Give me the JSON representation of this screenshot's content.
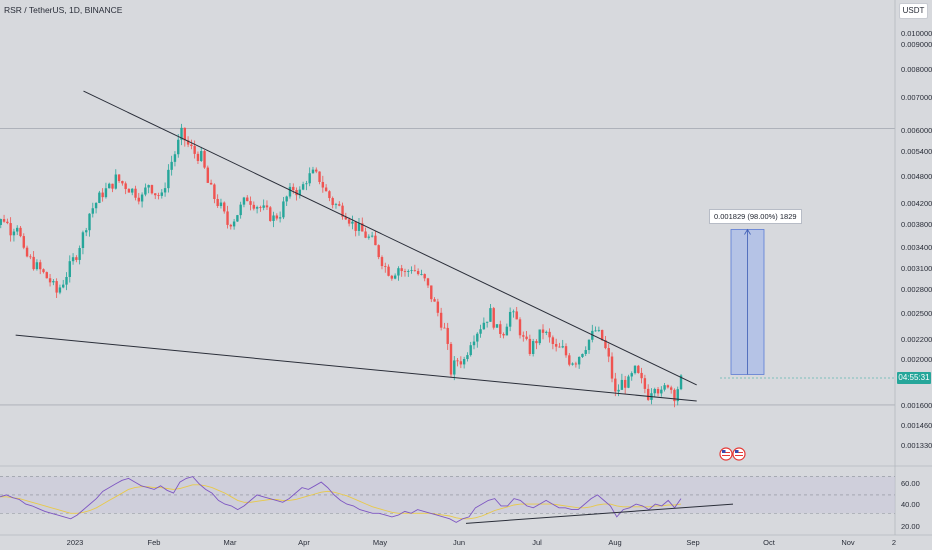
{
  "header": {
    "symbol_title": "RSR / TetherUS, 1D, BINANCE",
    "currency": "USDT"
  },
  "price_axis": {
    "ticks": [
      "0.010000",
      "0.009000",
      "0.008000",
      "0.007000",
      "0.006000",
      "0.005400",
      "0.004800",
      "0.004200",
      "0.003800",
      "0.003400",
      "0.003100",
      "0.002800",
      "0.002500",
      "0.002200",
      "0.002000",
      "0.001600",
      "0.001460",
      "0.001330"
    ],
    "current_countdown": "04:55:31"
  },
  "time_axis": {
    "labels": [
      "2023",
      "Feb",
      "Mar",
      "Apr",
      "May",
      "Jun",
      "Jul",
      "Aug",
      "Sep",
      "Oct",
      "Nov",
      "2"
    ]
  },
  "measure_tool": {
    "label": "0.001829 (98.00%) 1829"
  },
  "rsi_axis": {
    "ticks": [
      "60.00",
      "40.00",
      "20.00"
    ]
  },
  "colors": {
    "background": "#d7d9dd",
    "up": "#26a69a",
    "down": "#ef5350",
    "trendline": "#2a2e39",
    "measure_fill": "#aabbe8",
    "rsi_line": "#7e57c2",
    "rsi_ma": "#e8c94a",
    "rsi_band": "#c9c6d8"
  },
  "chart_data": {
    "type": "candlestick",
    "symbol": "RSR / TetherUS",
    "interval": "1D",
    "exchange": "BINANCE",
    "scale": "log",
    "price_range": [
      0.00125,
      0.0109
    ],
    "dates": [
      "2022-12-20",
      "2023-09-13"
    ],
    "close_path": [
      0.0039,
      0.0039,
      0.0038,
      0.0039,
      0.0037,
      0.0038,
      0.0033,
      0.0032,
      0.0031,
      0.003,
      0.0029,
      0.00275,
      0.0029,
      0.0031,
      0.0033,
      0.0036,
      0.004,
      0.0042,
      0.0044,
      0.0045,
      0.0047,
      0.0046,
      0.0045,
      0.0044,
      0.0043,
      0.0046,
      0.0044,
      0.0043,
      0.0049,
      0.0053,
      0.0058,
      0.0055,
      0.0053,
      0.0052,
      0.0046,
      0.0043,
      0.0041,
      0.0038,
      0.0039,
      0.0041,
      0.0043,
      0.0042,
      0.0041,
      0.004,
      0.0039,
      0.004,
      0.0043,
      0.0045,
      0.0044,
      0.0047,
      0.0048,
      0.0047,
      0.0044,
      0.0042,
      0.0041,
      0.004,
      0.0038,
      0.0037,
      0.0036,
      0.0035,
      0.0033,
      0.0031,
      0.003,
      0.0031,
      0.003,
      0.0031,
      0.003,
      0.0029,
      0.0027,
      0.0025,
      0.0023,
      0.0019,
      0.002,
      0.002,
      0.0022,
      0.0023,
      0.0024,
      0.0025,
      0.0023,
      0.0023,
      0.0025,
      0.0024,
      0.0022,
      0.0021,
      0.0022,
      0.0023,
      0.0022,
      0.0021,
      0.0021,
      0.002,
      0.002,
      0.0021,
      0.0022,
      0.0023,
      0.0022,
      0.002,
      0.0017,
      0.0018,
      0.0018,
      0.0019,
      0.0018,
      0.0017,
      0.0018,
      0.0017,
      0.0018,
      0.0017,
      0.00182
    ],
    "upper_trendline": {
      "from": [
        "2023-01-27",
        0.0071
      ],
      "to": [
        "2023-09-19",
        0.00178
      ]
    },
    "lower_trendline": {
      "from": [
        "2023-01-01",
        0.00225
      ],
      "to": [
        "2023-09-19",
        0.00165
      ]
    },
    "horizontal_levels": [
      0.00595,
      0.00162
    ],
    "measure": {
      "from_price": 0.00187,
      "to_price": 0.0037,
      "change": 0.001829,
      "change_pct": 98.0,
      "ticks": 1829
    },
    "rsi": {
      "period": 14,
      "range": [
        15,
        75
      ],
      "band": [
        30,
        70
      ],
      "values": [
        48,
        50,
        47,
        45,
        40,
        38,
        35,
        32,
        30,
        28,
        26,
        24,
        28,
        34,
        40,
        46,
        54,
        58,
        62,
        66,
        68,
        64,
        60,
        58,
        56,
        60,
        55,
        52,
        64,
        68,
        70,
        62,
        56,
        52,
        44,
        40,
        38,
        34,
        38,
        44,
        50,
        48,
        46,
        44,
        42,
        46,
        52,
        58,
        56,
        60,
        64,
        58,
        50,
        44,
        40,
        38,
        34,
        32,
        30,
        30,
        28,
        26,
        28,
        32,
        30,
        34,
        32,
        30,
        28,
        26,
        24,
        20,
        24,
        26,
        36,
        40,
        44,
        46,
        38,
        38,
        46,
        44,
        38,
        36,
        40,
        44,
        40,
        36,
        36,
        34,
        34,
        40,
        46,
        50,
        44,
        38,
        26,
        34,
        36,
        40,
        38,
        34,
        40,
        38,
        44,
        36,
        46
      ],
      "ma_values": [
        48,
        48,
        47,
        46,
        44,
        42,
        40,
        38,
        36,
        34,
        32,
        30,
        30,
        31,
        33,
        36,
        40,
        44,
        48,
        52,
        56,
        58,
        59,
        59,
        58,
        58,
        57,
        56,
        57,
        59,
        61,
        61,
        60,
        58,
        55,
        52,
        48,
        44,
        42,
        42,
        43,
        44,
        45,
        45,
        44,
        44,
        45,
        47,
        49,
        51,
        53,
        54,
        53,
        51,
        49,
        46,
        43,
        40,
        37,
        35,
        33,
        31,
        30,
        30,
        30,
        30,
        30,
        30,
        29,
        28,
        27,
        25,
        24,
        24,
        25,
        27,
        30,
        33,
        35,
        37,
        39,
        40,
        40,
        40,
        40,
        40,
        40,
        39,
        38,
        37,
        36,
        36,
        37,
        39,
        40,
        40,
        38,
        37,
        37,
        37,
        37,
        37,
        38,
        38,
        39,
        39,
        40
      ]
    }
  }
}
